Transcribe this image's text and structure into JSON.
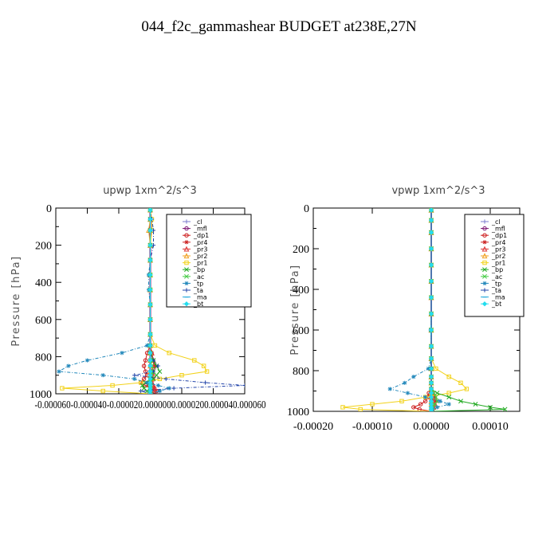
{
  "figure": {
    "title": "044_f2c_gammashear  BUDGET at238E,27N"
  },
  "chart_data": [
    {
      "type": "line",
      "title": "upwp   1xm^2/s^3",
      "ylabel": "Pressure [hPa]",
      "ylim": [
        1000,
        0
      ],
      "xlim": [
        -6e-05,
        6e-05
      ],
      "yticks": [
        "0",
        "200",
        "400",
        "600",
        "800",
        "1000"
      ],
      "xtick_text": "-0.000060-0.000040-0.000020.0000000.0000200.000040.000060",
      "grid": false,
      "legend_position": "top-right",
      "pressure": [
        10,
        60,
        120,
        200,
        280,
        360,
        440,
        520,
        600,
        680,
        740,
        780,
        820,
        850,
        880,
        900,
        920,
        940,
        955,
        970,
        985,
        1000
      ],
      "series": [
        {
          "name": "_cl",
          "color": "#7a7acc",
          "marker": "plus",
          "values": [
            0,
            0,
            0,
            0,
            0,
            0,
            0,
            0,
            0,
            0,
            0,
            0,
            0,
            0,
            0,
            0,
            0,
            0,
            0,
            0,
            0,
            0
          ]
        },
        {
          "name": "_mfl",
          "color": "#7a1070",
          "marker": "circle",
          "values": [
            0,
            0,
            0,
            0,
            0,
            0,
            0,
            0,
            0,
            0,
            0,
            0,
            0,
            0,
            0,
            0,
            0,
            0,
            0,
            0,
            0,
            0
          ]
        },
        {
          "name": "_dp1",
          "color": "#cc1a1a",
          "marker": "circle",
          "values": [
            0,
            0,
            0,
            0,
            0,
            0,
            0,
            0,
            0,
            0,
            0,
            -2e-06,
            -3e-06,
            -4e-06,
            -3e-06,
            -2e-06,
            -4e-06,
            -6e-06,
            -3e-06,
            2e-06,
            4e-06,
            0
          ]
        },
        {
          "name": "_pr4",
          "color": "#cc2222",
          "marker": "star",
          "values": [
            0,
            0,
            0,
            0,
            0,
            0,
            0,
            0,
            0,
            0,
            0,
            1e-06,
            2e-06,
            3e-06,
            2e-06,
            1e-06,
            2e-06,
            1e-06,
            -1e-06,
            1e-06,
            1e-06,
            0
          ]
        },
        {
          "name": "_pr3",
          "color": "#dd3333",
          "marker": "tri",
          "values": [
            0,
            0,
            0,
            0,
            0,
            0,
            0,
            0,
            0,
            0,
            0,
            1e-06,
            2e-06,
            2e-06,
            1e-06,
            2e-06,
            1e-06,
            1e-06,
            2e-06,
            3e-06,
            2e-06,
            0
          ]
        },
        {
          "name": "_pr2",
          "color": "#f0a020",
          "marker": "tri",
          "values": [
            0,
            0,
            -1e-06,
            0,
            0,
            0,
            0,
            0,
            0,
            0,
            0,
            0,
            0,
            0,
            0,
            0,
            0,
            0,
            0,
            0,
            0,
            0
          ]
        },
        {
          "name": "_pr1",
          "color": "#f2d21a",
          "marker": "square",
          "values": [
            0,
            1e-06,
            1e-06,
            0,
            0,
            0,
            0,
            0,
            0,
            0,
            3e-06,
            1.2e-05,
            2.8e-05,
            3.4e-05,
            3.6e-05,
            2e-05,
            6e-06,
            -6e-06,
            -2.4e-05,
            -5.6e-05,
            -3e-05,
            0
          ]
        },
        {
          "name": "_bp",
          "color": "#22aa22",
          "marker": "x",
          "values": [
            0,
            0,
            0,
            0,
            0,
            0,
            0,
            0,
            0,
            0,
            0,
            0,
            2e-06,
            4e-06,
            6e-06,
            4e-06,
            2e-06,
            -3e-06,
            -5e-06,
            -4e-06,
            -2e-06,
            0
          ]
        },
        {
          "name": "_ac",
          "color": "#44cc44",
          "marker": "x",
          "values": [
            0,
            0,
            0,
            0,
            0,
            0,
            0,
            0,
            0,
            0,
            0,
            0,
            0,
            1e-06,
            2e-06,
            1e-06,
            0,
            0,
            0,
            0,
            0,
            0
          ]
        },
        {
          "name": "_tp",
          "color": "#2288bb",
          "marker": "star",
          "values": [
            0,
            0,
            0,
            0,
            0,
            -1e-06,
            -1e-06,
            0,
            0,
            0,
            -2e-06,
            -1.8e-05,
            -4e-05,
            -5.2e-05,
            -5.8e-05,
            -3e-05,
            -1e-05,
            -2e-06,
            5e-06,
            1.2e-05,
            6e-06,
            0
          ]
        },
        {
          "name": "_ta",
          "color": "#2244aa",
          "marker": "plus",
          "values": [
            0,
            1e-06,
            2e-06,
            2e-06,
            0,
            0,
            0,
            0,
            0,
            0,
            0,
            0,
            2e-06,
            5e-06,
            2e-06,
            -1e-05,
            1e-05,
            3.5e-05,
            6e-05,
            1.5e-05,
            -6e-06,
            0
          ]
        },
        {
          "name": "_ma",
          "color": "#22aadd",
          "marker": "dash",
          "values": [
            0,
            0,
            0,
            0,
            0,
            0,
            0,
            0,
            0,
            0,
            0,
            0,
            0,
            0,
            0,
            0,
            0,
            0,
            0,
            0,
            0,
            0
          ]
        },
        {
          "name": "_bt",
          "color": "#22ddee",
          "marker": "diamond",
          "values": [
            0,
            0,
            0,
            0,
            0,
            0,
            0,
            0,
            0,
            0,
            0,
            0,
            0,
            0,
            0,
            0,
            0,
            0,
            0,
            0,
            0,
            0
          ]
        }
      ]
    },
    {
      "type": "line",
      "title": "vpwp   1xm^2/s^3",
      "ylabel": "Pressure [hPa]",
      "ylim": [
        1000,
        0
      ],
      "xlim": [
        -0.0002,
        0.00015
      ],
      "yticks": [
        "0",
        "200",
        "400",
        "600",
        "800",
        "1000"
      ],
      "xticks": [
        {
          "value": -0.0002,
          "label": "-0.00020"
        },
        {
          "value": -0.0001,
          "label": "-0.00010"
        },
        {
          "value": 0.0,
          "label": "0.00000"
        },
        {
          "value": 0.0001,
          "label": "0.00010"
        }
      ],
      "grid": false,
      "legend_position": "top-right",
      "pressure": [
        10,
        60,
        120,
        200,
        280,
        360,
        440,
        520,
        600,
        680,
        740,
        790,
        830,
        860,
        890,
        910,
        930,
        950,
        965,
        980,
        990,
        1000
      ],
      "series": [
        {
          "name": "_cl",
          "color": "#7a7acc",
          "marker": "plus",
          "values": [
            0,
            0,
            0,
            0,
            0,
            0,
            0,
            0,
            0,
            0,
            0,
            0,
            0,
            0,
            0,
            0,
            0,
            0,
            0,
            0,
            0,
            0
          ]
        },
        {
          "name": "_mfl",
          "color": "#7a1070",
          "marker": "circle",
          "values": [
            0,
            0,
            0,
            0,
            0,
            0,
            0,
            0,
            0,
            0,
            0,
            0,
            0,
            0,
            0,
            0,
            0,
            0,
            0,
            0,
            0,
            0
          ]
        },
        {
          "name": "_dp1",
          "color": "#cc1a1a",
          "marker": "circle",
          "values": [
            0,
            0,
            0,
            0,
            0,
            0,
            0,
            0,
            0,
            0,
            0,
            0,
            0,
            0,
            0,
            -4e-06,
            -6e-06,
            -1e-05,
            -1.8e-05,
            -3e-05,
            -2e-05,
            0
          ]
        },
        {
          "name": "_pr4",
          "color": "#cc2222",
          "marker": "star",
          "values": [
            0,
            0,
            0,
            0,
            0,
            0,
            0,
            0,
            0,
            0,
            0,
            0,
            0,
            0,
            0,
            3e-06,
            6e-06,
            8e-06,
            6e-06,
            3e-06,
            2e-06,
            0
          ]
        },
        {
          "name": "_pr3",
          "color": "#dd3333",
          "marker": "tri",
          "values": [
            0,
            0,
            0,
            0,
            0,
            0,
            0,
            0,
            0,
            0,
            0,
            0,
            0,
            0,
            0,
            0,
            2e-06,
            4e-06,
            6e-06,
            4e-06,
            2e-06,
            0
          ]
        },
        {
          "name": "_pr2",
          "color": "#f0a020",
          "marker": "tri",
          "values": [
            0,
            0,
            0,
            0,
            0,
            0,
            0,
            0,
            0,
            0,
            0,
            0,
            0,
            0,
            0,
            0,
            0,
            0,
            0,
            0,
            0,
            0
          ]
        },
        {
          "name": "_pr1",
          "color": "#f2d21a",
          "marker": "square",
          "values": [
            0,
            0,
            0,
            0,
            0,
            0,
            0,
            0,
            0,
            0,
            0,
            8e-06,
            3e-05,
            5e-05,
            6e-05,
            3e-05,
            -1e-05,
            -5e-05,
            -0.0001,
            -0.00015,
            -0.00012,
            0
          ]
        },
        {
          "name": "_bp",
          "color": "#22aa22",
          "marker": "x",
          "values": [
            0,
            0,
            0,
            0,
            0,
            0,
            0,
            0,
            0,
            0,
            0,
            0,
            0,
            0,
            0,
            1e-05,
            3e-05,
            5e-05,
            7.5e-05,
            0.0001,
            0.000125,
            0
          ]
        },
        {
          "name": "_ac",
          "color": "#44cc44",
          "marker": "x",
          "values": [
            0,
            0,
            0,
            0,
            0,
            0,
            0,
            0,
            0,
            0,
            0,
            0,
            0,
            0,
            0,
            4e-06,
            8e-06,
            1e-05,
            6e-06,
            3e-06,
            1e-06,
            0
          ]
        },
        {
          "name": "_tp",
          "color": "#2288bb",
          "marker": "star",
          "values": [
            0,
            0,
            0,
            0,
            0,
            0,
            0,
            0,
            -1e-06,
            0,
            0,
            -5e-06,
            -3e-05,
            -4.5e-05,
            -7e-05,
            -4e-05,
            -1e-05,
            1.5e-05,
            3e-05,
            1e-05,
            2e-06,
            0
          ]
        },
        {
          "name": "_ta",
          "color": "#2244aa",
          "marker": "plus",
          "values": [
            0,
            0,
            0,
            0,
            0,
            0,
            0,
            0,
            0,
            0,
            0,
            0,
            0,
            0,
            0,
            0,
            0,
            0,
            0,
            0,
            0,
            0
          ]
        },
        {
          "name": "_ma",
          "color": "#22aadd",
          "marker": "dash",
          "values": [
            0,
            0,
            0,
            0,
            0,
            0,
            0,
            0,
            0,
            0,
            0,
            0,
            0,
            0,
            0,
            0,
            0,
            0,
            0,
            0,
            0,
            0
          ]
        },
        {
          "name": "_bt",
          "color": "#22ddee",
          "marker": "diamond",
          "values": [
            0,
            0,
            0,
            0,
            0,
            0,
            0,
            0,
            0,
            0,
            0,
            0,
            0,
            0,
            0,
            0,
            0,
            0,
            0,
            0,
            0,
            0
          ]
        }
      ]
    }
  ]
}
